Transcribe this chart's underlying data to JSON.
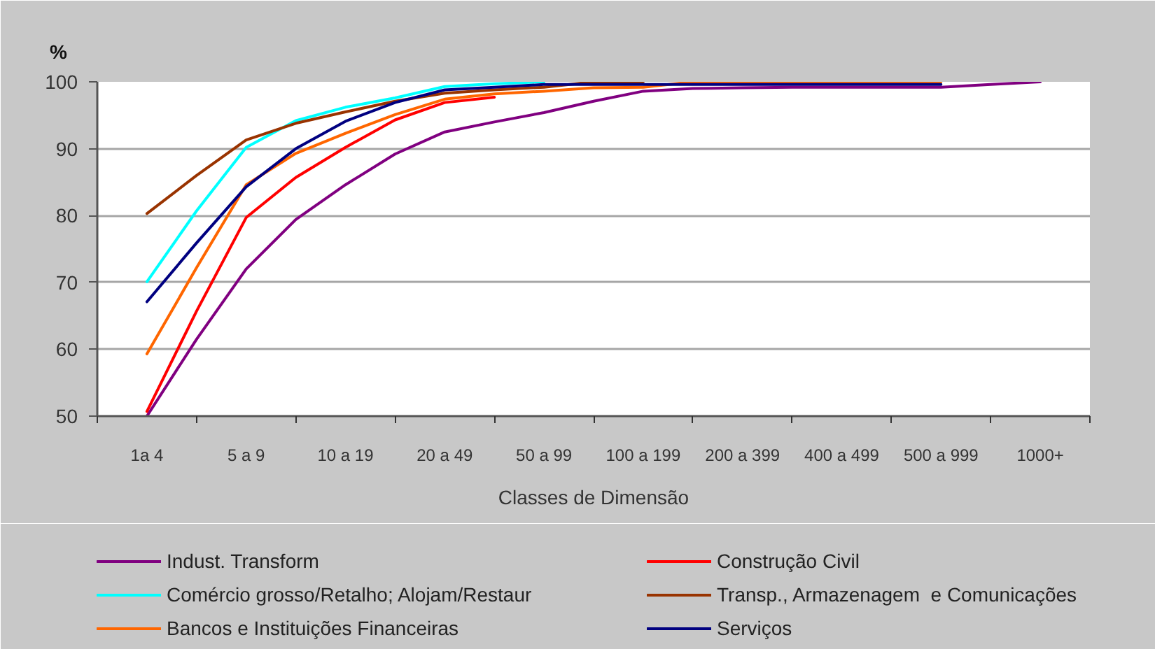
{
  "chart_data": {
    "type": "line",
    "xlabel": "Classes de Dimensão",
    "ylabel": "%",
    "categories": [
      "1a 4",
      null,
      "5 a 9",
      null,
      "10 a 19",
      null,
      "20 a 49",
      null,
      "50 a 99",
      null,
      "100 a 199",
      null,
      "200 a 399",
      null,
      "400 a 499",
      null,
      "500 a 999",
      null,
      "1000+"
    ],
    "ylim": [
      50,
      100
    ],
    "yticks": [
      50,
      60,
      70,
      80,
      90,
      100
    ],
    "grid": "y",
    "legend": "bottom",
    "series": [
      {
        "name": "Indust. Transform",
        "color": "#800080",
        "values": [
          50.0,
          61.5,
          72.0,
          79.4,
          84.6,
          89.2,
          92.5,
          94.0,
          95.4,
          97.1,
          98.6,
          99.0,
          99.1,
          99.2,
          99.2,
          99.2,
          99.2,
          99.6,
          100
        ]
      },
      {
        "name": "Construção Civil",
        "color": "#ff0000",
        "values": [
          50.7,
          65.7,
          79.7,
          85.7,
          90.2,
          94.3,
          96.9,
          97.7,
          null,
          null,
          null,
          null,
          null,
          null,
          null,
          null,
          null,
          null,
          null
        ]
      },
      {
        "name": "Comércio grosso/Retalho; Alojam/Restaur",
        "color": "#00ffff",
        "values": [
          70.1,
          80.7,
          90.2,
          94.2,
          96.2,
          97.6,
          99.3,
          99.7,
          100,
          null,
          null,
          null,
          null,
          null,
          null,
          null,
          null,
          null,
          null
        ]
      },
      {
        "name": "Transp., Armazenagem  e Comunicações",
        "color": "#993300",
        "values": [
          80.3,
          86.0,
          91.3,
          93.8,
          95.5,
          97.1,
          98.3,
          98.8,
          99.2,
          100,
          100,
          null,
          null,
          null,
          null,
          null,
          null,
          null,
          null
        ]
      },
      {
        "name": "Bancos e Instituições Financeiras",
        "color": "#ff6600",
        "values": [
          59.3,
          72.2,
          84.6,
          89.3,
          92.3,
          95.1,
          97.4,
          98.2,
          98.6,
          99.1,
          99.2,
          100,
          100,
          100,
          100,
          100,
          100,
          null,
          null
        ]
      },
      {
        "name": "Serviços",
        "color": "#000080",
        "values": [
          67.1,
          75.9,
          84.3,
          90.0,
          94.1,
          96.9,
          98.8,
          99.2,
          99.6,
          99.6,
          99.6,
          99.6,
          99.6,
          99.6,
          99.6,
          99.6,
          99.6,
          null,
          null
        ]
      }
    ]
  }
}
